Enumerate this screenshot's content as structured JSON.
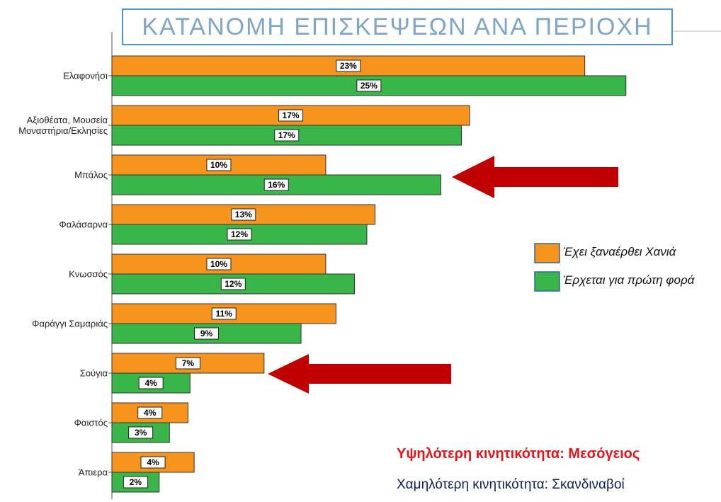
{
  "chart_data": {
    "type": "bar",
    "orientation": "horizontal",
    "title": "ΚΑΤΑΝΟΜΗ ΕΠΙΣΚΕΨΕΩΝ ΑΝΑ ΠΕΡΙΟΧΗ",
    "categories": [
      "Ελαφονήσι",
      "Αξιοθέατα, Μουσεία\nΜοναστήρια/Εκλησίες",
      "Μπάλος",
      "Φαλάσαρνα",
      "Κνωσσός",
      "Φαράγγι Σαμαριάς",
      "Σούγια",
      "Φαιστός",
      "Άπιερα"
    ],
    "series": [
      {
        "name": "Έχει ξαναέρθει Χανιά",
        "color": "#f7941d",
        "values": [
          23.0,
          17.4,
          10.4,
          12.8,
          10.4,
          10.9,
          7.4,
          3.7,
          4.0
        ],
        "value_labels": [
          "23%",
          "17%",
          "10%",
          "13%",
          "10%",
          "11%",
          "7%",
          "4%",
          "4%"
        ]
      },
      {
        "name": "Έρχεται για πρώτη φορά",
        "color": "#3ab54a",
        "values": [
          25.0,
          17.0,
          16.0,
          12.4,
          11.8,
          9.2,
          3.8,
          2.8,
          2.3
        ],
        "value_labels": [
          "25%",
          "17%",
          "16%",
          "12%",
          "12%",
          "9%",
          "4%",
          "3%",
          "2%"
        ]
      }
    ],
    "annotations": [
      "Υψηλότερη κινητικότητα: Μεσόγειος",
      "Χαμηλότερη κινητικότητα: Σκανδιναβοί"
    ],
    "legend": "right"
  }
}
